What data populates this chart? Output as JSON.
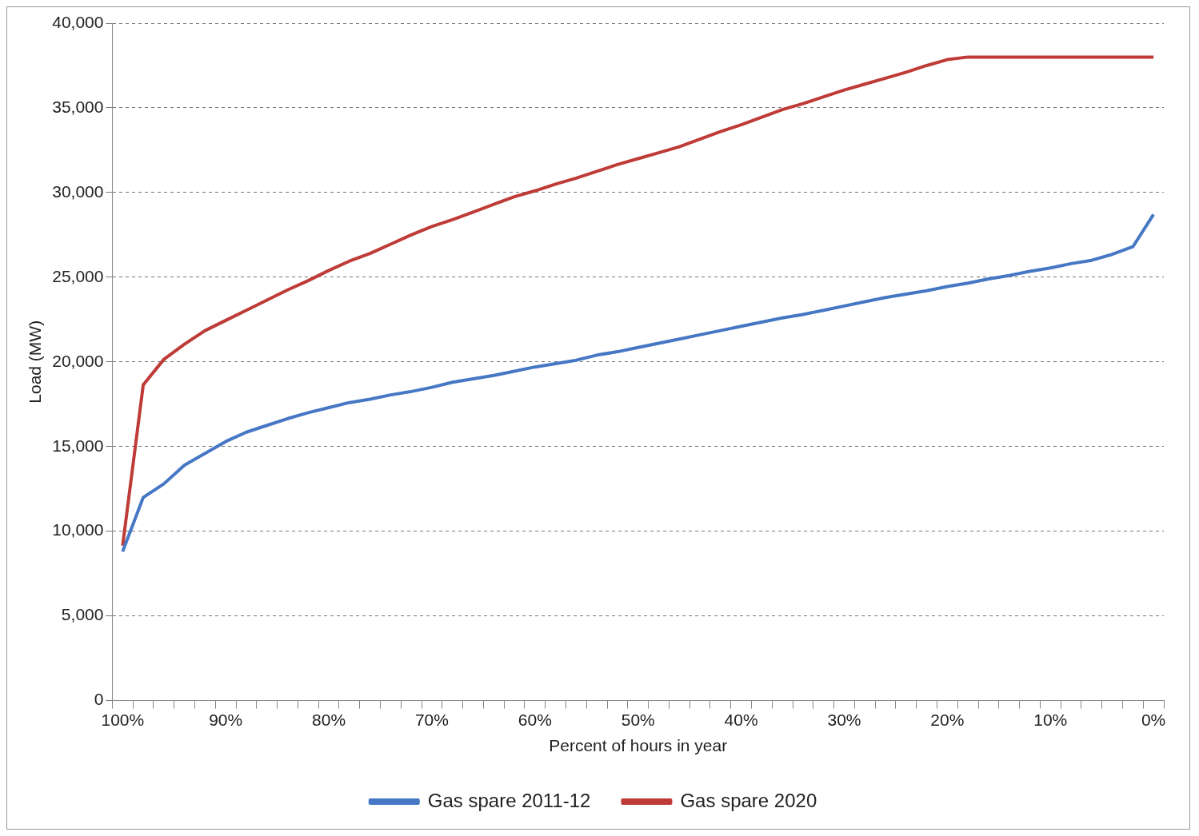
{
  "chart_data": {
    "type": "line",
    "xlabel": "Percent of hours in year",
    "ylabel": "Load (MW)",
    "categories": [
      "100%",
      null,
      null,
      null,
      null,
      "90%",
      null,
      null,
      null,
      null,
      "80%",
      null,
      null,
      null,
      null,
      "70%",
      null,
      null,
      null,
      null,
      "60%",
      null,
      null,
      null,
      null,
      "50%",
      null,
      null,
      null,
      null,
      "40%",
      null,
      null,
      null,
      null,
      "30%",
      null,
      null,
      null,
      null,
      "20%",
      null,
      null,
      null,
      null,
      "10%",
      null,
      null,
      null,
      null,
      "0%"
    ],
    "series": [
      {
        "name": "Gas spare 2011-12",
        "color": "#4677c4",
        "values": [
          8800,
          12000,
          12800,
          13900,
          14600,
          15300,
          15850,
          16250,
          16650,
          17000,
          17300,
          17600,
          17800,
          18050,
          18250,
          18500,
          18800,
          19000,
          19200,
          19450,
          19700,
          19900,
          20100,
          20400,
          20600,
          20850,
          21100,
          21350,
          21600,
          21850,
          22100,
          22350,
          22600,
          22800,
          23050,
          23300,
          23550,
          23800,
          24000,
          24200,
          24450,
          24650,
          24900,
          25100,
          25350,
          25550,
          25800,
          26000,
          26350,
          26800,
          28700
        ]
      },
      {
        "name": "Gas spare 2020",
        "color": "#be3b37",
        "values": [
          9150,
          18650,
          20150,
          21050,
          21850,
          22450,
          23050,
          23650,
          24250,
          24800,
          25400,
          25950,
          26400,
          26950,
          27500,
          28000,
          28400,
          28850,
          29300,
          29750,
          30100,
          30500,
          30850,
          31250,
          31650,
          32000,
          32350,
          32700,
          33150,
          33600,
          34000,
          34450,
          34900,
          35250,
          35650,
          36050,
          36400,
          36750,
          37100,
          37500,
          37850,
          38000,
          38000,
          38000,
          38000,
          38000,
          38000,
          38000,
          38000,
          38000,
          38000
        ]
      }
    ],
    "ylim": [
      0,
      40000
    ],
    "yticks": [
      0,
      {
        "value": 5000,
        "label": "5,000"
      },
      {
        "value": 10000,
        "label": "10,000"
      },
      {
        "value": 15000,
        "label": "15,000"
      },
      {
        "value": 20000,
        "label": "20,000"
      },
      {
        "value": 25000,
        "label": "25,000"
      },
      {
        "value": 30000,
        "label": "30,000"
      },
      {
        "value": 35000,
        "label": "35,000"
      },
      {
        "value": 40000,
        "label": "40,000"
      }
    ],
    "grid": "y",
    "legend": "bottom",
    "marker": "none",
    "line_style": "solid"
  }
}
